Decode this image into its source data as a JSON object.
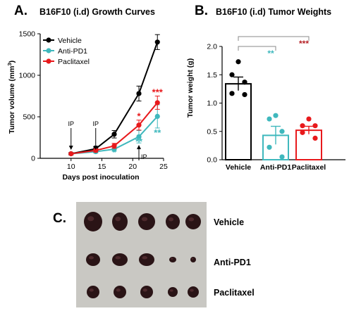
{
  "panel_letters": {
    "a": "A.",
    "b": "B.",
    "c": "C."
  },
  "chart_data": [
    {
      "type": "line",
      "title": "B16F10 (i.d) Growth Curves",
      "xlabel": "Days post inoculation",
      "ylabel": "Tumor volume (mm",
      "ylabel_sup": "3",
      "ylabel_close": ")",
      "xlim": [
        5,
        25
      ],
      "ylim": [
        0,
        1500
      ],
      "x_ticks": [
        "10",
        "15",
        "20",
        "25"
      ],
      "y_ticks": [
        "0",
        "500",
        "1000",
        "1500"
      ],
      "legend_position": "top-left",
      "series": [
        {
          "name": "Vehicle",
          "color": "#000000",
          "x": [
            10,
            14,
            17,
            21,
            24
          ],
          "y": [
            55,
            115,
            290,
            780,
            1400
          ],
          "err": [
            15,
            25,
            45,
            90,
            90
          ]
        },
        {
          "name": "Anti-PD1",
          "color": "#3fb8bd",
          "x": [
            10,
            14,
            17,
            21,
            24
          ],
          "y": [
            55,
            80,
            110,
            260,
            505
          ],
          "err": [
            10,
            15,
            25,
            75,
            140
          ]
        },
        {
          "name": "Paclitaxel",
          "color": "#e8191c",
          "x": [
            10,
            14,
            17,
            21,
            24
          ],
          "y": [
            55,
            95,
            150,
            400,
            670
          ],
          "err": [
            10,
            20,
            30,
            60,
            80
          ]
        }
      ],
      "annotations": [
        {
          "text": "IP",
          "x": 10,
          "kind": "arrow"
        },
        {
          "text": "IP",
          "x": 14,
          "kind": "arrow"
        },
        {
          "text": "IP",
          "x": 21,
          "kind": "arrow-up"
        },
        {
          "text": "*",
          "x": 17,
          "y": 35,
          "color": "#3fb8bd"
        },
        {
          "text": "*",
          "x": 21,
          "y": 470,
          "color": "#e8191c"
        },
        {
          "text": "**",
          "x": 21,
          "y": 165,
          "color": "#3fb8bd"
        },
        {
          "text": "***",
          "x": 24,
          "y": 760,
          "color": "#e8191c"
        },
        {
          "text": "**",
          "x": 24,
          "y": 270,
          "color": "#3fb8bd"
        }
      ]
    },
    {
      "type": "bar",
      "title": "B16F10 (i.d) Tumor Weights",
      "ylabel": "Tumor weight (g)",
      "ylim": [
        0,
        2.0
      ],
      "y_ticks": [
        "0.0",
        "0.5",
        "1.0",
        "1.5",
        "2.0"
      ],
      "categories": [
        "Vehicle",
        "Anti-PD1",
        "Paclitaxel"
      ],
      "values": [
        1.34,
        0.43,
        0.52
      ],
      "err": [
        0.12,
        0.16,
        0.07
      ],
      "colors": [
        "#000000",
        "#3fb8bd",
        "#e8191c"
      ],
      "points": [
        [
          1.73,
          1.5,
          1.37,
          1.17,
          1.15
        ],
        [
          0.78,
          0.72,
          0.5,
          0.22,
          0.05
        ],
        [
          0.72,
          0.6,
          0.6,
          0.48,
          0.38
        ]
      ],
      "significance": [
        {
          "text": "**",
          "from": 0,
          "to": 1,
          "color": "#3fb8bd"
        },
        {
          "text": "***",
          "from": 0,
          "to": 2,
          "color": "#b51f24"
        }
      ]
    }
  ],
  "photo_labels": [
    "Vehicle",
    "Anti-PD1",
    "Paclitaxel"
  ],
  "photo_tumors": [
    [
      {
        "rx": 13,
        "ry": 14
      },
      {
        "rx": 11,
        "ry": 13
      },
      {
        "rx": 12,
        "ry": 12
      },
      {
        "rx": 10,
        "ry": 11
      },
      {
        "rx": 11,
        "ry": 11
      }
    ],
    [
      {
        "rx": 10,
        "ry": 9
      },
      {
        "rx": 11,
        "ry": 9
      },
      {
        "rx": 11,
        "ry": 9
      },
      {
        "rx": 5,
        "ry": 4
      },
      {
        "rx": 4,
        "ry": 4
      }
    ],
    [
      {
        "rx": 9,
        "ry": 9
      },
      {
        "rx": 9,
        "ry": 9
      },
      {
        "rx": 9,
        "ry": 9
      },
      {
        "rx": 7,
        "ry": 7
      },
      {
        "rx": 8,
        "ry": 8
      }
    ]
  ],
  "colors": {
    "photo_background": "#c9c8c3",
    "tumor": "#2a1416"
  }
}
